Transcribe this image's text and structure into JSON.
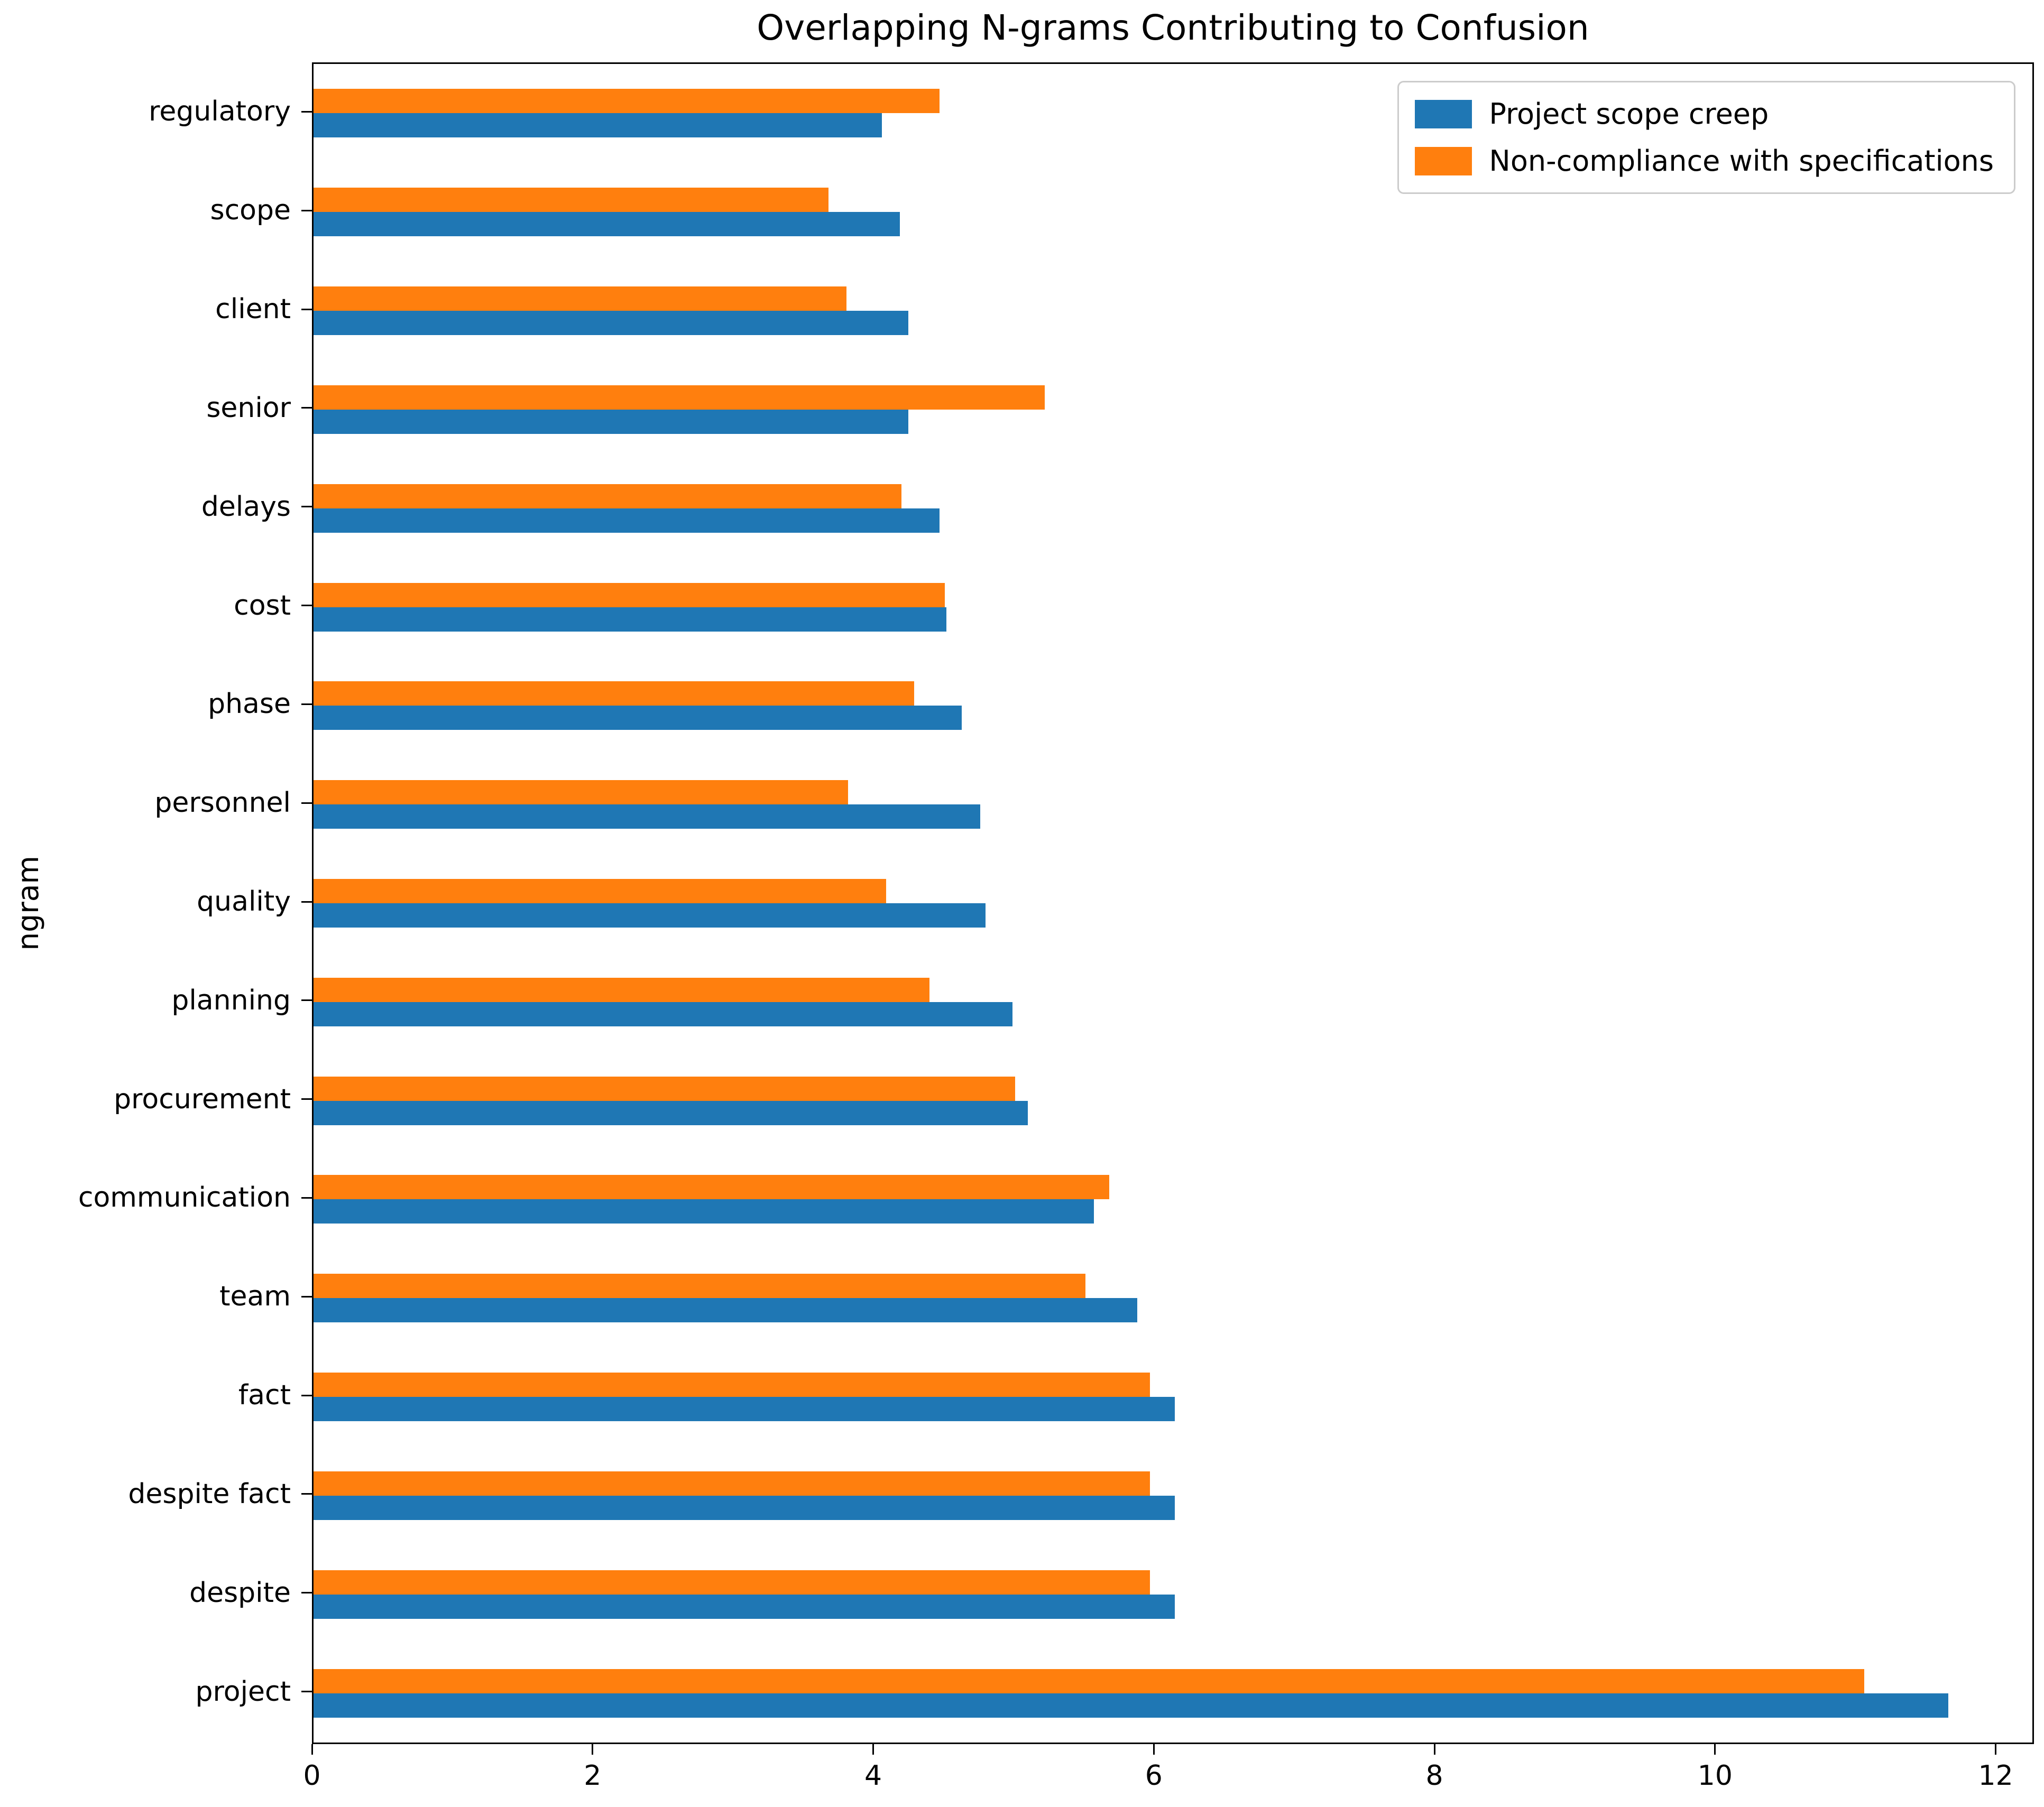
{
  "figure": {
    "title": "Overlapping N-grams Contributing to Confusion",
    "y_axis_label": "ngram"
  },
  "chart_data": {
    "type": "bar",
    "orientation": "horizontal",
    "title": "Overlapping N-grams Contributing to Confusion",
    "xlabel": "",
    "ylabel": "ngram",
    "grid": false,
    "legend_position": "upper right",
    "categories_top_to_bottom": [
      "regulatory",
      "scope",
      "client",
      "senior",
      "delays",
      "cost",
      "phase",
      "personnel",
      "quality",
      "planning",
      "procurement",
      "communication",
      "team",
      "fact",
      "despite fact",
      "despite",
      "project"
    ],
    "series": [
      {
        "name": "Project scope creep",
        "color": "#1f77b4",
        "values": [
          4.05,
          4.18,
          4.24,
          4.24,
          4.46,
          4.51,
          4.62,
          4.75,
          4.79,
          4.98,
          5.09,
          5.56,
          5.87,
          6.14,
          6.14,
          6.14,
          11.65
        ]
      },
      {
        "name": "Non-compliance with specifications",
        "color": "#ff7f0e",
        "values": [
          4.46,
          3.67,
          3.8,
          5.21,
          4.19,
          4.5,
          4.28,
          3.81,
          4.08,
          4.39,
          5.0,
          5.67,
          5.5,
          5.96,
          5.96,
          5.96,
          11.05
        ]
      }
    ],
    "x_ticks": [
      0,
      2,
      4,
      6,
      8,
      10,
      12
    ],
    "xlim": [
      0,
      12.25
    ],
    "bar_group_order_top_to_bottom": [
      "Non-compliance with specifications",
      "Project scope creep"
    ]
  }
}
